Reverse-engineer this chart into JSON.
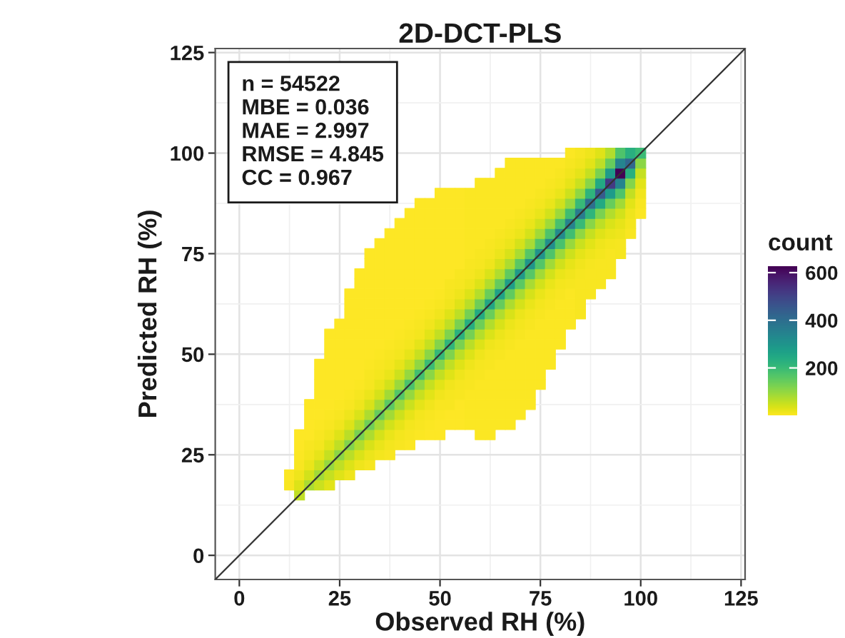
{
  "chart_data": {
    "type": "scatter",
    "title": "2D-DCT-PLS",
    "xlabel": "Observed RH (%)",
    "ylabel": "Predicted RH (%)",
    "clabel": "count",
    "annotations": [
      "n = 54522",
      "MBE = 0.036",
      "MAE = 2.997",
      "RMSE = 4.845",
      "CC = 0.967"
    ],
    "xlim": [
      -6,
      126
    ],
    "ylim": [
      -6,
      126
    ],
    "xticks": [
      0,
      25,
      50,
      75,
      100,
      125
    ],
    "yticks": [
      0,
      25,
      50,
      75,
      100,
      125
    ],
    "clim": [
      1,
      627
    ],
    "cticks": [
      200,
      400,
      600
    ],
    "grid": true,
    "marker": "square",
    "x": [
      12.5,
      12.5,
      15,
      15,
      15,
      15,
      15,
      15,
      15,
      17.5,
      17.5,
      17.5,
      17.5,
      17.5,
      17.5,
      17.5,
      17.5,
      17.5,
      20,
      20,
      20,
      20,
      20,
      20,
      20,
      20,
      20,
      20,
      20,
      20,
      20,
      22.5,
      22.5,
      22.5,
      22.5,
      22.5,
      22.5,
      22.5,
      22.5,
      22.5,
      22.5,
      22.5,
      22.5,
      22.5,
      22.5,
      22.5,
      22.5,
      25,
      25,
      25,
      25,
      25,
      25,
      25,
      25,
      25,
      25,
      25,
      25,
      25,
      25,
      25,
      25,
      27.5,
      27.5,
      27.5,
      27.5,
      27.5,
      27.5,
      27.5,
      27.5,
      27.5,
      27.5,
      27.5,
      27.5,
      27.5,
      27.5,
      27.5,
      27.5,
      27.5,
      27.5,
      27.5,
      30,
      30,
      30,
      30,
      30,
      30,
      30,
      30,
      30,
      30,
      30,
      30,
      30,
      30,
      30,
      30,
      30,
      30,
      30,
      30,
      32.5,
      32.5,
      32.5,
      32.5,
      32.5,
      32.5,
      32.5,
      32.5,
      32.5,
      32.5,
      32.5,
      32.5,
      32.5,
      32.5,
      32.5,
      32.5,
      32.5,
      32.5,
      32.5,
      32.5,
      32.5,
      32.5,
      35,
      35,
      35,
      35,
      35,
      35,
      35,
      35,
      35,
      35,
      35,
      35,
      35,
      35,
      35,
      35,
      35,
      35,
      35,
      35,
      35,
      35,
      37.5,
      37.5,
      37.5,
      37.5,
      37.5,
      37.5,
      37.5,
      37.5,
      37.5,
      37.5,
      37.5,
      37.5,
      37.5,
      37.5,
      37.5,
      37.5,
      37.5,
      37.5,
      37.5,
      37.5,
      37.5,
      37.5,
      37.5,
      40,
      40,
      40,
      40,
      40,
      40,
      40,
      40,
      40,
      40,
      40,
      40,
      40,
      40,
      40,
      40,
      40,
      40,
      40,
      40,
      40,
      40,
      40,
      42.5,
      42.5,
      42.5,
      42.5,
      42.5,
      42.5,
      42.5,
      42.5,
      42.5,
      42.5,
      42.5,
      42.5,
      42.5,
      42.5,
      42.5,
      42.5,
      42.5,
      42.5,
      42.5,
      42.5,
      42.5,
      42.5,
      42.5,
      42.5,
      45,
      45,
      45,
      45,
      45,
      45,
      45,
      45,
      45,
      45,
      45,
      45,
      45,
      45,
      45,
      45,
      45,
      45,
      45,
      45,
      45,
      45,
      45,
      45,
      47.5,
      47.5,
      47.5,
      47.5,
      47.5,
      47.5,
      47.5,
      47.5,
      47.5,
      47.5,
      47.5,
      47.5,
      47.5,
      47.5,
      47.5,
      47.5,
      47.5,
      47.5,
      47.5,
      47.5,
      47.5,
      47.5,
      47.5,
      47.5,
      50,
      50,
      50,
      50,
      50,
      50,
      50,
      50,
      50,
      50,
      50,
      50,
      50,
      50,
      50,
      50,
      50,
      50,
      50,
      50,
      50,
      50,
      50,
      50,
      50,
      52.5,
      52.5,
      52.5,
      52.5,
      52.5,
      52.5,
      52.5,
      52.5,
      52.5,
      52.5,
      52.5,
      52.5,
      52.5,
      52.5,
      52.5,
      52.5,
      52.5,
      52.5,
      52.5,
      52.5,
      52.5,
      52.5,
      52.5,
      52.5,
      55,
      55,
      55,
      55,
      55,
      55,
      55,
      55,
      55,
      55,
      55,
      55,
      55,
      55,
      55,
      55,
      55,
      55,
      55,
      55,
      55,
      55,
      55,
      55,
      57.5,
      57.5,
      57.5,
      57.5,
      57.5,
      57.5,
      57.5,
      57.5,
      57.5,
      57.5,
      57.5,
      57.5,
      57.5,
      57.5,
      57.5,
      57.5,
      57.5,
      57.5,
      57.5,
      57.5,
      57.5,
      57.5,
      57.5,
      57.5,
      60,
      60,
      60,
      60,
      60,
      60,
      60,
      60,
      60,
      60,
      60,
      60,
      60,
      60,
      60,
      60,
      60,
      60,
      60,
      60,
      60,
      60,
      60,
      60,
      60,
      60,
      62.5,
      62.5,
      62.5,
      62.5,
      62.5,
      62.5,
      62.5,
      62.5,
      62.5,
      62.5,
      62.5,
      62.5,
      62.5,
      62.5,
      62.5,
      62.5,
      62.5,
      62.5,
      62.5,
      62.5,
      62.5,
      62.5,
      62.5,
      62.5,
      62.5,
      62.5,
      65,
      65,
      65,
      65,
      65,
      65,
      65,
      65,
      65,
      65,
      65,
      65,
      65,
      65,
      65,
      65,
      65,
      65,
      65,
      65,
      65,
      65,
      65,
      65,
      65,
      65,
      67.5,
      67.5,
      67.5,
      67.5,
      67.5,
      67.5,
      67.5,
      67.5,
      67.5,
      67.5,
      67.5,
      67.5,
      67.5,
      67.5,
      67.5,
      67.5,
      67.5,
      67.5,
      67.5,
      67.5,
      67.5,
      67.5,
      67.5,
      67.5,
      67.5,
      67.5,
      67.5,
      70,
      70,
      70,
      70,
      70,
      70,
      70,
      70,
      70,
      70,
      70,
      70,
      70,
      70,
      70,
      70,
      70,
      70,
      70,
      70,
      70,
      70,
      70,
      70,
      70,
      70,
      72.5,
      72.5,
      72.5,
      72.5,
      72.5,
      72.5,
      72.5,
      72.5,
      72.5,
      72.5,
      72.5,
      72.5,
      72.5,
      72.5,
      72.5,
      72.5,
      72.5,
      72.5,
      72.5,
      72.5,
      72.5,
      72.5,
      72.5,
      72.5,
      72.5,
      75,
      75,
      75,
      75,
      75,
      75,
      75,
      75,
      75,
      75,
      75,
      75,
      75,
      75,
      75,
      75,
      75,
      75,
      75,
      75,
      75,
      75,
      75,
      77.5,
      77.5,
      77.5,
      77.5,
      77.5,
      77.5,
      77.5,
      77.5,
      77.5,
      77.5,
      77.5,
      77.5,
      77.5,
      77.5,
      77.5,
      77.5,
      77.5,
      77.5,
      77.5,
      77.5,
      77.5,
      80,
      80,
      80,
      80,
      80,
      80,
      80,
      80,
      80,
      80,
      80,
      80,
      80,
      80,
      80,
      80,
      80,
      80,
      80,
      82.5,
      82.5,
      82.5,
      82.5,
      82.5,
      82.5,
      82.5,
      82.5,
      82.5,
      82.5,
      82.5,
      82.5,
      82.5,
      82.5,
      82.5,
      82.5,
      82.5,
      82.5,
      85,
      85,
      85,
      85,
      85,
      85,
      85,
      85,
      85,
      85,
      85,
      85,
      85,
      85,
      85,
      85,
      85,
      87.5,
      87.5,
      87.5,
      87.5,
      87.5,
      87.5,
      87.5,
      87.5,
      87.5,
      87.5,
      87.5,
      87.5,
      87.5,
      87.5,
      87.5,
      90,
      90,
      90,
      90,
      90,
      90,
      90,
      90,
      90,
      90,
      90,
      90,
      90,
      90,
      92.5,
      92.5,
      92.5,
      92.5,
      92.5,
      92.5,
      92.5,
      92.5,
      92.5,
      92.5,
      92.5,
      92.5,
      92.5,
      95,
      95,
      95,
      95,
      95,
      95,
      95,
      95,
      95,
      95,
      95,
      97.5,
      97.5,
      97.5,
      97.5,
      97.5,
      97.5,
      97.5,
      97.5,
      97.5,
      100,
      100,
      100,
      100,
      100,
      100,
      100
    ],
    "values": [
      17.5,
      20,
      15,
      17.5,
      20,
      22.5,
      25,
      27.5,
      30,
      17.5,
      20,
      22.5,
      25,
      27.5,
      30,
      32.5,
      35,
      37.5,
      17.5,
      20,
      22.5,
      25,
      27.5,
      30,
      32.5,
      35,
      37.5,
      40,
      42.5,
      45,
      47.5,
      17.5,
      20,
      22.5,
      25,
      27.5,
      30,
      32.5,
      35,
      37.5,
      40,
      42.5,
      45,
      47.5,
      50,
      52.5,
      55,
      20,
      22.5,
      25,
      27.5,
      30,
      32.5,
      35,
      37.5,
      40,
      42.5,
      45,
      47.5,
      50,
      52.5,
      55,
      57.5,
      20,
      22.5,
      25,
      27.5,
      30,
      32.5,
      35,
      37.5,
      40,
      42.5,
      45,
      47.5,
      50,
      52.5,
      55,
      57.5,
      60,
      62.5,
      65,
      22.5,
      25,
      27.5,
      30,
      32.5,
      35,
      37.5,
      40,
      42.5,
      45,
      47.5,
      50,
      52.5,
      55,
      57.5,
      60,
      62.5,
      65,
      67.5,
      70,
      22.5,
      25,
      27.5,
      30,
      32.5,
      35,
      37.5,
      40,
      42.5,
      45,
      47.5,
      50,
      52.5,
      55,
      57.5,
      60,
      62.5,
      65,
      67.5,
      70,
      72.5,
      75,
      25,
      27.5,
      30,
      32.5,
      35,
      37.5,
      40,
      42.5,
      45,
      47.5,
      50,
      52.5,
      55,
      57.5,
      60,
      62.5,
      65,
      67.5,
      70,
      72.5,
      75,
      77.5,
      25,
      27.5,
      30,
      32.5,
      35,
      37.5,
      40,
      42.5,
      45,
      47.5,
      50,
      52.5,
      55,
      57.5,
      60,
      62.5,
      65,
      67.5,
      70,
      72.5,
      75,
      77.5,
      80,
      27.5,
      30,
      32.5,
      35,
      37.5,
      40,
      42.5,
      45,
      47.5,
      50,
      52.5,
      55,
      57.5,
      60,
      62.5,
      65,
      67.5,
      70,
      72.5,
      75,
      77.5,
      80,
      82.5,
      27.5,
      30,
      32.5,
      35,
      37.5,
      40,
      42.5,
      45,
      47.5,
      50,
      52.5,
      55,
      57.5,
      60,
      62.5,
      65,
      67.5,
      70,
      72.5,
      75,
      77.5,
      80,
      82.5,
      85,
      30,
      32.5,
      35,
      37.5,
      40,
      42.5,
      45,
      47.5,
      50,
      52.5,
      55,
      57.5,
      60,
      62.5,
      65,
      67.5,
      70,
      72.5,
      75,
      77.5,
      80,
      82.5,
      85,
      87.5,
      30,
      32.5,
      35,
      37.5,
      40,
      42.5,
      45,
      47.5,
      50,
      52.5,
      55,
      57.5,
      60,
      62.5,
      65,
      67.5,
      70,
      72.5,
      75,
      77.5,
      80,
      82.5,
      85,
      87.5,
      30,
      32.5,
      35,
      37.5,
      40,
      42.5,
      45,
      47.5,
      50,
      52.5,
      55,
      57.5,
      60,
      62.5,
      65,
      67.5,
      70,
      72.5,
      75,
      77.5,
      80,
      82.5,
      85,
      87.5,
      90,
      32.5,
      35,
      37.5,
      40,
      42.5,
      45,
      47.5,
      50,
      52.5,
      55,
      57.5,
      60,
      62.5,
      65,
      67.5,
      70,
      72.5,
      75,
      77.5,
      80,
      82.5,
      85,
      87.5,
      90,
      32.5,
      35,
      37.5,
      40,
      42.5,
      45,
      47.5,
      50,
      52.5,
      55,
      57.5,
      60,
      62.5,
      65,
      67.5,
      70,
      72.5,
      75,
      77.5,
      80,
      82.5,
      85,
      87.5,
      90,
      32.5,
      35,
      37.5,
      40,
      42.5,
      45,
      47.5,
      50,
      52.5,
      55,
      57.5,
      60,
      62.5,
      65,
      67.5,
      70,
      72.5,
      75,
      77.5,
      80,
      82.5,
      85,
      87.5,
      90,
      30,
      32.5,
      35,
      37.5,
      40,
      42.5,
      45,
      47.5,
      50,
      52.5,
      55,
      57.5,
      60,
      62.5,
      65,
      67.5,
      70,
      72.5,
      75,
      77.5,
      80,
      82.5,
      85,
      87.5,
      90,
      92.5,
      30,
      32.5,
      35,
      37.5,
      40,
      42.5,
      45,
      47.5,
      50,
      52.5,
      55,
      57.5,
      60,
      62.5,
      65,
      67.5,
      70,
      72.5,
      75,
      77.5,
      80,
      82.5,
      85,
      87.5,
      90,
      92.5,
      32.5,
      35,
      37.5,
      40,
      42.5,
      45,
      47.5,
      50,
      52.5,
      55,
      57.5,
      60,
      62.5,
      65,
      67.5,
      70,
      72.5,
      75,
      77.5,
      80,
      82.5,
      85,
      87.5,
      90,
      92.5,
      95,
      32.5,
      35,
      37.5,
      40,
      42.5,
      45,
      47.5,
      50,
      52.5,
      55,
      57.5,
      60,
      62.5,
      65,
      67.5,
      70,
      72.5,
      75,
      77.5,
      80,
      82.5,
      85,
      87.5,
      90,
      92.5,
      95,
      97.5,
      35,
      37.5,
      40,
      42.5,
      45,
      47.5,
      50,
      52.5,
      55,
      57.5,
      60,
      62.5,
      65,
      67.5,
      70,
      72.5,
      75,
      77.5,
      80,
      82.5,
      85,
      87.5,
      90,
      92.5,
      95,
      97.5,
      37.5,
      40,
      42.5,
      45,
      47.5,
      50,
      52.5,
      55,
      57.5,
      60,
      62.5,
      65,
      67.5,
      70,
      72.5,
      75,
      77.5,
      80,
      82.5,
      85,
      87.5,
      90,
      92.5,
      95,
      97.5,
      42.5,
      45,
      47.5,
      50,
      52.5,
      55,
      57.5,
      60,
      62.5,
      65,
      67.5,
      70,
      72.5,
      75,
      77.5,
      80,
      82.5,
      85,
      87.5,
      90,
      92.5,
      95,
      97.5,
      47.5,
      50,
      52.5,
      55,
      57.5,
      60,
      62.5,
      65,
      67.5,
      70,
      72.5,
      75,
      77.5,
      80,
      82.5,
      85,
      87.5,
      90,
      92.5,
      95,
      97.5,
      52.5,
      55,
      57.5,
      60,
      62.5,
      65,
      67.5,
      70,
      72.5,
      75,
      77.5,
      80,
      82.5,
      85,
      87.5,
      90,
      92.5,
      95,
      97.5,
      57.5,
      60,
      62.5,
      65,
      67.5,
      70,
      72.5,
      75,
      77.5,
      80,
      82.5,
      85,
      87.5,
      90,
      92.5,
      95,
      97.5,
      100,
      60,
      62.5,
      65,
      67.5,
      70,
      72.5,
      75,
      77.5,
      80,
      82.5,
      85,
      87.5,
      90,
      92.5,
      95,
      97.5,
      100,
      65,
      67.5,
      70,
      72.5,
      75,
      77.5,
      80,
      82.5,
      85,
      87.5,
      90,
      92.5,
      95,
      97.5,
      100,
      67.5,
      70,
      72.5,
      75,
      77.5,
      80,
      82.5,
      85,
      87.5,
      90,
      92.5,
      95,
      97.5,
      100,
      70,
      72.5,
      75,
      77.5,
      80,
      82.5,
      85,
      87.5,
      90,
      92.5,
      95,
      97.5,
      100,
      75,
      77.5,
      80,
      82.5,
      85,
      87.5,
      90,
      92.5,
      95,
      97.5,
      100,
      80,
      82.5,
      85,
      87.5,
      90,
      92.5,
      95,
      97.5,
      100,
      85,
      87.5,
      90,
      92.5,
      95,
      97.5,
      100
    ],
    "cvalues": [
      8,
      4,
      60,
      33,
      17,
      8,
      4,
      2,
      2,
      80,
      44,
      22,
      11,
      6,
      3,
      2,
      2,
      2,
      50,
      90,
      50,
      25,
      13,
      6,
      4,
      2,
      2,
      2,
      2,
      2,
      2,
      28,
      55,
      100,
      55,
      28,
      14,
      7,
      4,
      3,
      2,
      2,
      2,
      2,
      2,
      2,
      2,
      31,
      61,
      110,
      61,
      31,
      15,
      8,
      4,
      3,
      2,
      2,
      2,
      2,
      2,
      2,
      2,
      17,
      34,
      66,
      120,
      66,
      34,
      17,
      8,
      5,
      3,
      2,
      2,
      2,
      2,
      2,
      2,
      2,
      2,
      2,
      18,
      36,
      72,
      130,
      72,
      36,
      18,
      9,
      5,
      3,
      2,
      2,
      2,
      2,
      2,
      2,
      2,
      2,
      2,
      2,
      10,
      20,
      39,
      77,
      140,
      77,
      39,
      20,
      10,
      6,
      4,
      2,
      2,
      2,
      2,
      2,
      2,
      2,
      2,
      2,
      2,
      2,
      11,
      21,
      42,
      83,
      150,
      83,
      42,
      21,
      11,
      6,
      4,
      2,
      2,
      2,
      2,
      2,
      2,
      2,
      2,
      2,
      2,
      2,
      6,
      11,
      22,
      45,
      88,
      160,
      88,
      45,
      22,
      11,
      6,
      4,
      2,
      2,
      2,
      2,
      2,
      2,
      2,
      2,
      2,
      2,
      2,
      7,
      12,
      24,
      48,
      94,
      170,
      94,
      48,
      24,
      12,
      7,
      4,
      3,
      3,
      3,
      3,
      3,
      3,
      3,
      3,
      3,
      3,
      3,
      5,
      7,
      13,
      25,
      50,
      99,
      180,
      99,
      50,
      25,
      13,
      7,
      5,
      3,
      3,
      3,
      3,
      3,
      3,
      3,
      3,
      3,
      3,
      3,
      5,
      8,
      13,
      27,
      53,
      105,
      190,
      105,
      53,
      27,
      13,
      8,
      5,
      3,
      3,
      3,
      3,
      3,
      3,
      3,
      3,
      3,
      3,
      3,
      3,
      5,
      8,
      14,
      28,
      56,
      110,
      200,
      110,
      56,
      28,
      14,
      8,
      5,
      3,
      3,
      3,
      3,
      3,
      3,
      3,
      3,
      3,
      3,
      3,
      3,
      5,
      8,
      15,
      29,
      59,
      116,
      210,
      116,
      59,
      29,
      15,
      8,
      5,
      3,
      3,
      3,
      3,
      3,
      3,
      3,
      3,
      3,
      3,
      3,
      3,
      6,
      9,
      15,
      31,
      62,
      121,
      220,
      121,
      62,
      31,
      15,
      9,
      6,
      3,
      3,
      3,
      3,
      3,
      3,
      3,
      3,
      3,
      3,
      3,
      3,
      6,
      9,
      16,
      32,
      64,
      127,
      230,
      127,
      64,
      32,
      16,
      9,
      6,
      3,
      3,
      3,
      3,
      3,
      3,
      3,
      3,
      4,
      4,
      4,
      4,
      6,
      10,
      17,
      34,
      67,
      132,
      240,
      132,
      67,
      34,
      17,
      10,
      6,
      4,
      4,
      4,
      4,
      4,
      4,
      4,
      4,
      4,
      4,
      4,
      4,
      4,
      6,
      10,
      18,
      35,
      70,
      138,
      250,
      138,
      70,
      35,
      18,
      10,
      6,
      4,
      4,
      4,
      4,
      4,
      4,
      4,
      4,
      4,
      4,
      4,
      4,
      4,
      4,
      7,
      10,
      18,
      36,
      73,
      143,
      260,
      143,
      73,
      36,
      18,
      10,
      7,
      4,
      4,
      4,
      4,
      4,
      4,
      4,
      4,
      4,
      4,
      4,
      4,
      4,
      7,
      11,
      19,
      38,
      76,
      149,
      270,
      149,
      76,
      38,
      19,
      11,
      7,
      4,
      4,
      4,
      4,
      4,
      4,
      4,
      4,
      4,
      4,
      4,
      4,
      4,
      4,
      7,
      11,
      20,
      39,
      78,
      154,
      280,
      154,
      78,
      39,
      20,
      11,
      7,
      4,
      4,
      4,
      4,
      4,
      4,
      4,
      4,
      4,
      4,
      4,
      4,
      4,
      4,
      7,
      12,
      20,
      41,
      81,
      160,
      290,
      160,
      81,
      41,
      20,
      12,
      7,
      4,
      4,
      4,
      4,
      4,
      5,
      5,
      5,
      5,
      5,
      5,
      5,
      5,
      8,
      12,
      21,
      42,
      84,
      165,
      300,
      165,
      84,
      42,
      21,
      12,
      8,
      5,
      5,
      5,
      5,
      5,
      5,
      5,
      5,
      5,
      5,
      5,
      8,
      12,
      22,
      43,
      87,
      171,
      310,
      171,
      87,
      43,
      22,
      12,
      8,
      5,
      5,
      5,
      5,
      5,
      5,
      5,
      5,
      5,
      8,
      13,
      22,
      45,
      90,
      176,
      320,
      176,
      90,
      45,
      22,
      13,
      8,
      5,
      5,
      5,
      5,
      5,
      5,
      5,
      8,
      13,
      23,
      46,
      92,
      182,
      330,
      182,
      92,
      46,
      23,
      13,
      8,
      5,
      5,
      5,
      5,
      5,
      9,
      14,
      25,
      49,
      98,
      193,
      350,
      193,
      98,
      49,
      25,
      14,
      9,
      5,
      6,
      6,
      6,
      6,
      9,
      15,
      26,
      52,
      104,
      204,
      370,
      204,
      104,
      52,
      26,
      15,
      9,
      6,
      6,
      6,
      10,
      16,
      28,
      56,
      112,
      220,
      400,
      220,
      112,
      56,
      28,
      16,
      7,
      7,
      7,
      11,
      18,
      32,
      63,
      126,
      248,
      450,
      248,
      126,
      63,
      32,
      8,
      8,
      8,
      13,
      21,
      36,
      73,
      146,
      286,
      520,
      286,
      146,
      73,
      9,
      9,
      16,
      25,
      44,
      88,
      176,
      345,
      627,
      345,
      176,
      6,
      11,
      17,
      29,
      59,
      118,
      231,
      420,
      231,
      5,
      8,
      14,
      28,
      56,
      110,
      200
    ],
    "colors": [
      "#f8e621",
      "#fbe723",
      "#c0df25",
      "#dde318",
      "#efe51c",
      "#f8e621",
      "#fbe723",
      "#fde725",
      "#fde725",
      "#aadc32",
      "#d2e21b",
      "#eae51a",
      "#f4e61e",
      "#f8e621",
      "#fde725",
      "#fde725",
      "#fde725",
      "#fde725",
      "#cae11f",
      "#a0da39",
      "#cae11f",
      "#e7e419",
      "#f4e61e",
      "#f8e621",
      "#fbe723",
      "#fde725",
      "#fde725",
      "#fde725",
      "#fde725",
      "#fde725",
      "#fde725",
      "#e2e418",
      "#c5e021",
      "#95d840",
      "#c5e021",
      "#e2e418",
      "#f1e51d",
      "#f8e621",
      "#fbe723",
      "#fde725",
      "#fde725",
      "#fde725",
      "#fde725",
      "#fde725",
      "#fde725",
      "#fde725",
      "#fde725",
      "#dfe318",
      "#c0df25",
      "#8bd646",
      "#c0df25",
      "#dfe318",
      "#f1e51d",
      "#f8e621",
      "#fbe723",
      "#fde725",
      "#fde725",
      "#fde725",
      "#fde725",
      "#fde725",
      "#fde725",
      "#fde725",
      "#fde725",
      "#efe51c",
      "#dde318",
      "#bade28",
      "#81d34d",
      "#bade28",
      "#dde318",
      "#efe51c",
      "#f8e621",
      "#fbe723",
      "#fde725",
      "#fde725",
      "#fde725",
      "#fde725",
      "#fde725",
      "#fde725",
      "#fde725",
      "#fde725",
      "#fde725",
      "#fde725",
      "#efe51c",
      "#dae319",
      "#b2dd2d",
      "#77d153",
      "#b2dd2d",
      "#dae319",
      "#efe51c",
      "#f6e620",
      "#fbe723",
      "#fde725",
      "#fde725",
      "#fde725",
      "#fde725",
      "#fde725",
      "#fde725",
      "#fde725",
      "#fde725",
      "#fde725",
      "#fde725",
      "#fde725",
      "#f6e620",
      "#ece51b",
      "#d8e219",
      "#addc30",
      "#6ece58",
      "#addc30",
      "#d8e219",
      "#ece51b",
      "#f6e620",
      "#f8e621",
      "#fbe723",
      "#fde725",
      "#fde725",
      "#fde725",
      "#fde725",
      "#fde725",
      "#fde725",
      "#fde725",
      "#fde725",
      "#fde725",
      "#fde725",
      "#fde725",
      "#f4e61e",
      "#eae51a",
      "#d5e21a",
      "#a8db34",
      "#65cb5e",
      "#a8db34",
      "#d5e21a",
      "#eae51a",
      "#f4e61e",
      "#f8e621",
      "#fbe723",
      "#fde725",
      "#fde725",
      "#fde725",
      "#fde725",
      "#fde725",
      "#fde725",
      "#fde725",
      "#fde725",
      "#fde725",
      "#fde725",
      "#fde725",
      "#f8e621",
      "#f4e61e",
      "#eae51a",
      "#d2e21b",
      "#a2da37",
      "#5ac864",
      "#a2da37",
      "#d2e21b",
      "#eae51a",
      "#f4e61e",
      "#f8e621",
      "#fbe723",
      "#fde725",
      "#fde725",
      "#fde725",
      "#fde725",
      "#fde725",
      "#fde725",
      "#fde725",
      "#fde725",
      "#fde725",
      "#fde725",
      "#fde725",
      "#f8e621",
      "#f4e61e",
      "#e7e419",
      "#cde11d",
      "#9bd93c",
      "#52c569",
      "#9bd93c",
      "#cde11d",
      "#e7e419",
      "#f4e61e",
      "#f8e621",
      "#fbe723",
      "#fde725",
      "#fde725",
      "#fde725",
      "#fde725",
      "#fde725",
      "#fde725",
      "#fde725",
      "#fde725",
      "#fde725",
      "#fde725",
      "#fde725",
      "#fbe723",
      "#f8e621",
      "#f4e61e",
      "#e7e419",
      "#cae11f",
      "#95d840",
      "#4ac16d",
      "#95d840",
      "#cae11f",
      "#e7e419",
      "#f4e61e",
      "#f8e621",
      "#fbe723",
      "#fde725",
      "#fde725",
      "#fde725",
      "#fde725",
      "#fde725",
      "#fde725",
      "#fde725",
      "#fde725",
      "#fde725",
      "#fde725",
      "#fde725",
      "#fbe723",
      "#f8e621",
      "#f4e61e",
      "#e5e419",
      "#c8e020",
      "#90d743",
      "#42be71",
      "#90d743",
      "#c8e020",
      "#e5e419",
      "#f4e61e",
      "#f8e621",
      "#fbe723",
      "#fde725",
      "#fde725",
      "#fde725",
      "#fde725",
      "#fde725",
      "#fde725",
      "#fde725",
      "#fde725",
      "#fde725",
      "#fde725",
      "#fde725",
      "#fde725",
      "#fbe723",
      "#f8e621",
      "#f1e51d",
      "#e2e418",
      "#c5e021",
      "#8bd646",
      "#3bbb75",
      "#8bd646",
      "#c5e021",
      "#e2e418",
      "#f1e51d",
      "#f8e621",
      "#fbe723",
      "#fde725",
      "#fde725",
      "#fde725",
      "#fde725",
      "#fde725",
      "#fde725",
      "#fde725",
      "#fde725",
      "#fde725",
      "#fde725",
      "#fde725",
      "#fde725",
      "#fbe723",
      "#f8e621",
      "#f1e51d",
      "#e2e418",
      "#c2df23",
      "#84d44b",
      "#35b779",
      "#84d44b",
      "#c2df23",
      "#e2e418",
      "#f1e51d",
      "#f8e621",
      "#fbe723",
      "#fde725",
      "#fde725",
      "#fde725",
      "#fde725",
      "#fde725",
      "#fde725",
      "#fde725",
      "#fde725",
      "#fde725",
      "#fde725",
      "#fde725",
      "#fde725",
      "#f8e621",
      "#f6e620",
      "#f1e51d",
      "#dfe318",
      "#c0df25",
      "#7fd34e",
      "#2fb47c",
      "#7fd34e",
      "#c0df25",
      "#dfe318",
      "#f1e51d",
      "#f6e620",
      "#f8e621",
      "#fde725",
      "#fde725",
      "#fde725",
      "#fde725",
      "#fde725",
      "#fde725",
      "#fde725",
      "#fde725",
      "#fde725",
      "#fde725",
      "#fde725",
      "#fde725",
      "#f8e621",
      "#f6e620",
      "#efe51c",
      "#dfe318",
      "#bddf26",
      "#7ad151",
      "#2ab07f",
      "#7ad151",
      "#bddf26",
      "#dfe318",
      "#efe51c",
      "#f6e620",
      "#f8e621",
      "#fde725",
      "#fde725",
      "#fde725",
      "#fde725",
      "#fde725",
      "#fde725",
      "#fde725",
      "#fde725",
      "#fbe723",
      "#fbe723",
      "#fbe723",
      "#fbe723",
      "#f8e621",
      "#f6e620",
      "#efe51c",
      "#dde318",
      "#bade28",
      "#75d054",
      "#26ad81",
      "#75d054",
      "#bade28",
      "#dde318",
      "#efe51c",
      "#f6e620",
      "#f8e621",
      "#fbe723",
      "#fbe723",
      "#fbe723",
      "#fbe723",
      "#fbe723",
      "#fbe723",
      "#fbe723",
      "#fbe723",
      "#fbe723",
      "#fbe723",
      "#fbe723",
      "#fbe723",
      "#fbe723",
      "#f8e621",
      "#f6e620",
      "#efe51c",
      "#dde318",
      "#b5de2b",
      "#6ece58",
      "#23a983",
      "#6ece58",
      "#b5de2b",
      "#dde318",
      "#efe51c",
      "#f6e620",
      "#f8e621",
      "#fbe723",
      "#fbe723",
      "#fbe723",
      "#fbe723",
      "#fbe723",
      "#fbe723",
      "#fbe723",
      "#fbe723",
      "#fbe723",
      "#fbe723",
      "#fbe723",
      "#fbe723",
      "#fbe723",
      "#fbe723",
      "#f8e621",
      "#f6e620",
      "#efe51c",
      "#dae319",
      "#b2dd2d",
      "#69cd5b",
      "#21a585",
      "#69cd5b",
      "#b2dd2d",
      "#dae319",
      "#efe51c",
      "#f6e620",
      "#f8e621",
      "#fbe723",
      "#fbe723",
      "#fbe723",
      "#fbe723",
      "#fbe723",
      "#fbe723",
      "#fbe723",
      "#fbe723",
      "#fbe723",
      "#fbe723",
      "#fbe723",
      "#fbe723",
      "#fbe723",
      "#f8e621",
      "#f4e61e",
      "#ece51b",
      "#d8e219",
      "#b0dd2f",
      "#65cb5e",
      "#1fa188",
      "#65cb5e",
      "#b0dd2f",
      "#d8e219",
      "#ece51b",
      "#f4e61e",
      "#f8e621",
      "#fbe723",
      "#fbe723",
      "#fbe723",
      "#fbe723",
      "#fbe723",
      "#fbe723",
      "#fbe723",
      "#fbe723",
      "#fbe723",
      "#fbe723",
      "#fbe723",
      "#fbe723",
      "#fbe723",
      "#fbe723",
      "#f8e621",
      "#f4e61e",
      "#ece51b",
      "#d8e219",
      "#addc30",
      "#60ca60",
      "#1e9d89",
      "#60ca60",
      "#addc30",
      "#d8e219",
      "#ece51b",
      "#f4e61e",
      "#f8e621",
      "#fbe723",
      "#fbe723",
      "#fbe723",
      "#fbe723",
      "#fbe723",
      "#fbe723",
      "#fbe723",
      "#fbe723",
      "#fbe723",
      "#fbe723",
      "#fbe723",
      "#fbe723",
      "#fbe723",
      "#fbe723",
      "#f8e621",
      "#f4e61e",
      "#ece51b",
      "#d5e21a",
      "#aadc32",
      "#5ac864",
      "#1f998a",
      "#5ac864",
      "#aadc32",
      "#d5e21a",
      "#ece51b",
      "#f4e61e",
      "#f8e621",
      "#fbe723",
      "#fbe723",
      "#fbe723",
      "#fbe723",
      "#fbe723",
      "#fbe723",
      "#fbe723",
      "#fbe723",
      "#fbe723",
      "#fbe723",
      "#fbe723",
      "#fbe723",
      "#fbe723",
      "#f8e621",
      "#f4e61e",
      "#eae51a",
      "#d5e21a",
      "#a8db34",
      "#56c667",
      "#1f958b",
      "#56c667",
      "#a8db34",
      "#d5e21a",
      "#eae51a",
      "#f4e61e",
      "#f8e621",
      "#fbe723",
      "#fbe723",
      "#fbe723",
      "#fbe723",
      "#fbe723",
      "#fbe723",
      "#fbe723",
      "#fbe723",
      "#fbe723",
      "#fbe723",
      "#fbe723",
      "#f8e621",
      "#f4e61e",
      "#eae51a",
      "#d2e21b",
      "#a2da37",
      "#52c569",
      "#20928c",
      "#52c569",
      "#a2da37",
      "#d2e21b",
      "#eae51a",
      "#f4e61e",
      "#f8e621",
      "#fbe723",
      "#fbe723",
      "#fbe723",
      "#fbe723",
      "#fbe723",
      "#fbe723",
      "#fbe723",
      "#fbe723",
      "#fbe723",
      "#f8e621",
      "#f4e61e",
      "#eae51a",
      "#d2e21b",
      "#a0da39",
      "#4ec36b",
      "#218e8d",
      "#4ec36b",
      "#a0da39",
      "#d2e21b",
      "#eae51a",
      "#f4e61e",
      "#f8e621",
      "#fbe723",
      "#fbe723",
      "#fbe723",
      "#fbe723",
      "#fbe723",
      "#fbe723",
      "#fbe723",
      "#f8e621",
      "#f4e61e",
      "#eae51a",
      "#d0e11c",
      "#9dd93b",
      "#48c16e",
      "#238a8d",
      "#48c16e",
      "#9dd93b",
      "#d0e11c",
      "#eae51a",
      "#f4e61e",
      "#f8e621",
      "#fbe723",
      "#fbe723",
      "#fbe723",
      "#fbe723",
      "#fbe723",
      "#f6e620",
      "#f1e51d",
      "#e7e419",
      "#cde11d",
      "#98d83e",
      "#40bd72",
      "#26828e",
      "#40bd72",
      "#98d83e",
      "#cde11d",
      "#e7e419",
      "#f1e51d",
      "#f6e620",
      "#fbe723",
      "#f8e621",
      "#f8e621",
      "#f8e621",
      "#f8e621",
      "#f6e620",
      "#f1e51d",
      "#e5e419",
      "#cae11f",
      "#90d743",
      "#38b977",
      "#297b8e",
      "#38b977",
      "#90d743",
      "#cae11f",
      "#e5e419",
      "#f1e51d",
      "#f6e620",
      "#f8e621",
      "#f8e621",
      "#f8e621",
      "#f6e620",
      "#efe51c",
      "#e2e418",
      "#c5e021",
      "#89d548",
      "#2fb47c",
      "#2e6f8e",
      "#2fb47c",
      "#89d548",
      "#c5e021",
      "#e2e418",
      "#efe51c",
      "#f8e621",
      "#f8e621",
      "#f8e621",
      "#f4e61e",
      "#efe51c",
      "#dfe318",
      "#bddf26",
      "#7ad151",
      "#23a983",
      "#375b8d",
      "#23a983",
      "#7ad151",
      "#bddf26",
      "#dfe318",
      "#f8e621",
      "#f8e621",
      "#f8e621",
      "#f4e61e",
      "#eae51a",
      "#dae319",
      "#b2dd2d",
      "#67cc5c",
      "#1e9b8a",
      "#443a83",
      "#1e9b8a",
      "#67cc5c",
      "#b2dd2d",
      "#f6e620",
      "#f6e620",
      "#efe51c",
      "#e7e419",
      "#d2e21b",
      "#a2da37",
      "#4ec36b",
      "#25848e",
      "#440154",
      "#25848e",
      "#4ec36b",
      "#f8e621",
      "#f4e61e",
      "#efe51c",
      "#e2e418",
      "#c2df23",
      "#84d44b",
      "#29af7f",
      "#31678e",
      "#29af7f",
      "#fbe723",
      "#f8e621",
      "#f1e51d",
      "#e2e418",
      "#c5e021",
      "#8bd646",
      "#3bbb75"
    ],
    "series": [
      {
        "type": "line",
        "x": [
          -6,
          126
        ],
        "values": [
          -6,
          126
        ],
        "color": "#333333",
        "marker": "none"
      }
    ]
  }
}
